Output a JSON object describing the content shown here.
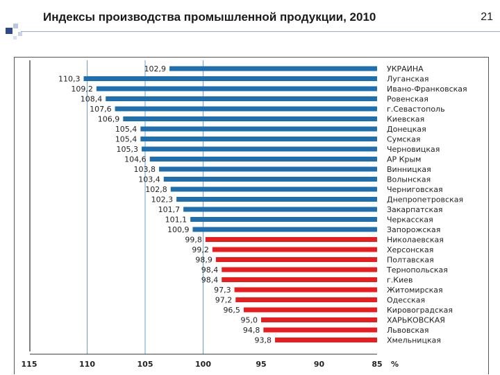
{
  "slide": {
    "title": "Индексы производства промышленной продукции, 2010",
    "number": "21"
  },
  "colors": {
    "above_100": "#1f6fae",
    "below_100": "#e81e1e",
    "gridline": "#6a9fd0",
    "text": "#222222"
  },
  "chart_data": {
    "type": "bar",
    "orientation": "horizontal",
    "xaxis_reversed": true,
    "xlim": [
      85,
      115
    ],
    "xticks": [
      "115",
      "110",
      "105",
      "100",
      "95",
      "90",
      "85"
    ],
    "xunit_label": "%",
    "grid": "vertical lines at 110, 105, 100",
    "categories": [
      "УКРАИНА",
      "Луганская",
      "Ивано-Франковская",
      "Ровенская",
      "г.Севастополь",
      "Киевская",
      "Донецкая",
      "Сумская",
      "Черновицкая",
      "АР Крым",
      "Винницкая",
      "Волынская",
      "Черниговская",
      "Днепропетровская",
      "Закарпатская",
      "Черкасская",
      "Запорожская",
      "Николаевская",
      "Херсонская",
      "Полтавская",
      "Тернопольская",
      "г.Киев",
      "Житомирская",
      "Одесская",
      "Кировоградская",
      "ХАРЬКОВСКАЯ",
      "Львовская",
      "Хмельницкая"
    ],
    "values": [
      102.9,
      110.3,
      109.2,
      108.4,
      107.6,
      106.9,
      105.4,
      105.4,
      105.3,
      104.6,
      103.8,
      103.4,
      102.8,
      102.3,
      101.7,
      101.1,
      100.9,
      99.8,
      99.2,
      98.9,
      98.4,
      98.4,
      97.3,
      97.2,
      96.5,
      95.0,
      94.8,
      93.8
    ],
    "value_labels": [
      "102,9",
      "110,3",
      "109,2",
      "108,4",
      "107,6",
      "106,9",
      "105,4",
      "105,4",
      "105,3",
      "104,6",
      "103,8",
      "103,4",
      "102,8",
      "102,3",
      "101,7",
      "101,1",
      "100,9",
      "99,8",
      "99,2",
      "98,9",
      "98,4",
      "98,4",
      "97,3",
      "97,2",
      "96,5",
      "95,0",
      "94,8",
      "93,8"
    ],
    "color_rule": "blue if value > 100, red if value < 100"
  }
}
